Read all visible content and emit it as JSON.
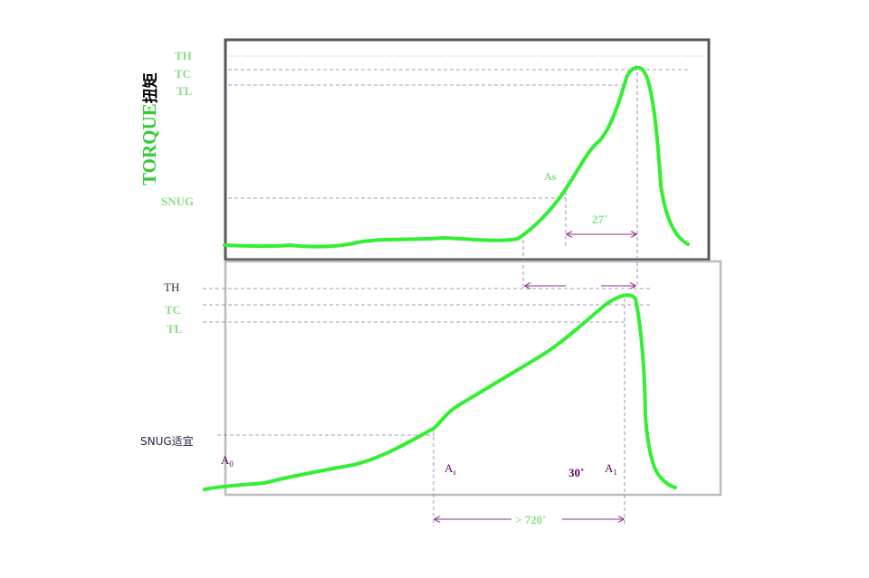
{
  "colors": {
    "curve": "#33ee33",
    "label_green": "#88dd88",
    "torque_green": "#33cc33",
    "purple": "#660066",
    "arrow_purple": "#883388",
    "dash_purple": "#8877aa",
    "upper_frame": "#55555e",
    "lower_frame": "#bbbbbb"
  },
  "upper_panel": {
    "y_axis_title": "TORQUE",
    "y_axis_title_cn": "扭矩",
    "levels": {
      "th": "TH",
      "tc": "TC",
      "tl": "TL",
      "snug": "SNUG"
    },
    "point_as": "As",
    "angle_label": "27˚"
  },
  "lower_panel": {
    "levels": {
      "th": "TH",
      "tc": "TC",
      "tl": "TL",
      "snug": "SNUG适宜"
    },
    "point_a0": {
      "base": "A",
      "sub": "0"
    },
    "point_as": {
      "base": "A",
      "sub": "s"
    },
    "point_a1": {
      "base": "A",
      "sub": "1"
    },
    "angle_30": "30˚",
    "angle_720": "> 720˚"
  }
}
